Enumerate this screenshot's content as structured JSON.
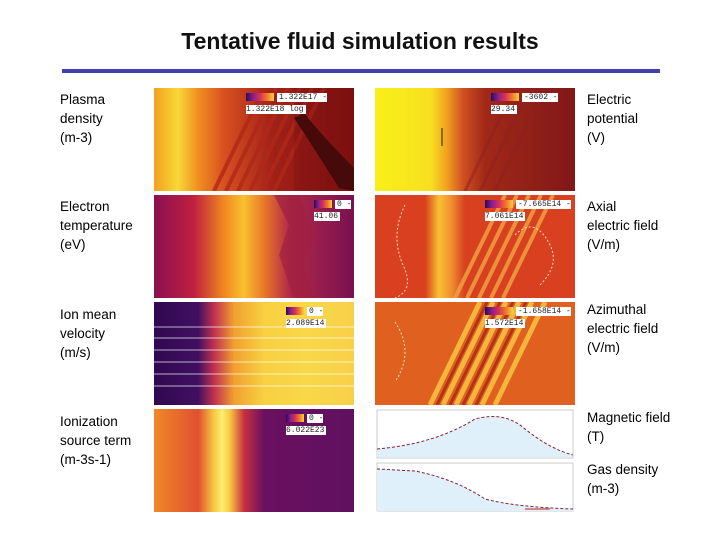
{
  "title": "Tentative fluid simulation results",
  "labels": {
    "plasma_density": "Plasma\ndensity\n(m-3)",
    "electric_potential": "Electric\npotential\n(V)",
    "electron_temperature": "Electron\ntemperature\n(eV)",
    "axial_field": "Axial\nelectric field\n(V/m)",
    "ion_velocity": "Ion mean\nvelocity\n(m/s)",
    "azimuthal_field": "Azimuthal\nelectric field\n(V/m)",
    "ionization": "Ionization\nsource term\n(m-3s-1)",
    "magnetic_field": "Magnetic field\n(T)",
    "gas_density": "Gas density\n(m-3)"
  },
  "colorbars": {
    "plasma_density": "1.322E17 - 1.322E18 log",
    "electric_potential": "-3602 - 29.34",
    "electron_temperature": "0 - 41.06",
    "axial_field": "-7.665E14 - 7.061E14",
    "ion_velocity": "0 - 2.089E14",
    "azimuthal_field": "-1.658E14 - 1.572E14",
    "ionization": "0 - 6.022E23"
  }
}
